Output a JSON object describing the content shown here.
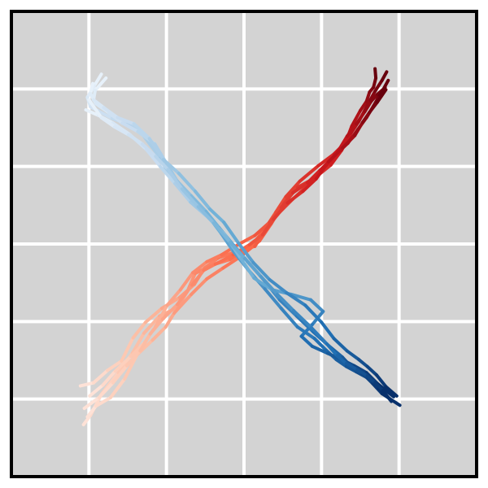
{
  "chart_data": {
    "type": "line",
    "title": "",
    "xlabel": "",
    "ylabel": "",
    "xlim": [
      0,
      6
    ],
    "ylim": [
      0,
      6
    ],
    "grid": true,
    "background_color": "#d3d3d3",
    "grid_color": "#ffffff",
    "frame_color": "#000000",
    "legend": "none",
    "colormaps": {
      "reds": [
        "#fff5f0",
        "#fcbba1",
        "#fb6a4a",
        "#cb181d",
        "#67000d"
      ],
      "blues": [
        "#f7fbff",
        "#c6dbef",
        "#6baed6",
        "#2171b5",
        "#08306b"
      ]
    },
    "series": [
      {
        "colormap": "reds",
        "x": [
          0.93,
          1.02,
          1.16,
          1.38,
          1.56,
          1.71,
          1.91,
          2.14,
          2.27,
          2.37,
          2.56,
          2.82,
          3.08,
          3.26,
          3.41,
          3.54,
          3.72,
          3.96,
          4.16,
          4.31,
          4.39,
          4.5,
          4.58,
          4.62,
          4.67,
          4.7,
          4.69
        ],
        "y": [
          0.67,
          0.79,
          1.06,
          1.34,
          1.59,
          1.85,
          2.07,
          2.18,
          2.39,
          2.62,
          2.72,
          2.8,
          2.96,
          3.18,
          3.41,
          3.61,
          3.81,
          4.01,
          4.16,
          4.31,
          4.52,
          4.72,
          4.84,
          4.96,
          5.02,
          5.14,
          5.26
        ]
      },
      {
        "colormap": "reds",
        "x": [
          0.98,
          1.09,
          1.28,
          1.46,
          1.62,
          1.82,
          1.99,
          2.1,
          2.32,
          2.52,
          2.73,
          2.96,
          3.2,
          3.35,
          3.51,
          3.69,
          3.91,
          4.12,
          4.26,
          4.38,
          4.48,
          4.56,
          4.63,
          4.69,
          4.78,
          4.84
        ],
        "y": [
          0.77,
          0.91,
          1.02,
          1.26,
          1.57,
          1.76,
          1.93,
          2.11,
          2.35,
          2.55,
          2.69,
          2.84,
          3.04,
          3.26,
          3.52,
          3.73,
          3.85,
          4.02,
          4.21,
          4.43,
          4.58,
          4.73,
          4.86,
          4.97,
          5.11,
          5.22
        ]
      },
      {
        "colormap": "reds",
        "x": [
          0.89,
          1.06,
          1.24,
          1.42,
          1.57,
          1.73,
          1.94,
          2.17,
          2.36,
          2.49,
          2.67,
          2.89,
          3.14,
          3.31,
          3.46,
          3.63,
          3.86,
          4.06,
          4.21,
          4.33,
          4.45,
          4.56,
          4.64,
          4.72,
          4.8,
          4.86
        ],
        "y": [
          1.17,
          1.21,
          1.37,
          1.49,
          1.79,
          1.99,
          2.17,
          2.31,
          2.48,
          2.69,
          2.82,
          2.9,
          2.97,
          3.23,
          3.41,
          3.58,
          3.79,
          4.01,
          4.19,
          4.39,
          4.55,
          4.71,
          4.84,
          4.93,
          5.0,
          5.11
        ]
      },
      {
        "colormap": "reds",
        "x": [
          1.01,
          1.18,
          1.34,
          1.54,
          1.72,
          1.86,
          2.01,
          2.18,
          2.34,
          2.52,
          2.71,
          2.92,
          3.14,
          3.33,
          3.48,
          3.63,
          3.82,
          3.98,
          4.17,
          4.34,
          4.47,
          4.58,
          4.67,
          4.75,
          4.82
        ],
        "y": [
          1.04,
          1.18,
          1.36,
          1.55,
          1.73,
          1.94,
          2.21,
          2.41,
          2.63,
          2.77,
          2.86,
          2.99,
          3.11,
          3.28,
          3.47,
          3.66,
          3.79,
          3.95,
          4.14,
          4.3,
          4.48,
          4.63,
          4.78,
          4.92,
          5.02
        ]
      },
      {
        "colormap": "reds",
        "x": [
          0.94,
          1.13,
          1.31,
          1.49,
          1.66,
          1.79,
          1.95,
          2.14,
          2.33,
          2.48,
          2.63,
          2.86,
          3.07,
          3.24,
          3.38,
          3.56,
          3.76,
          3.93,
          4.09,
          4.27,
          4.43,
          4.53,
          4.62,
          4.72,
          4.83
        ],
        "y": [
          0.88,
          1.02,
          1.21,
          1.43,
          1.62,
          1.84,
          2.03,
          2.22,
          2.47,
          2.66,
          2.74,
          2.86,
          2.99,
          3.12,
          3.32,
          3.53,
          3.68,
          3.84,
          4.06,
          4.24,
          4.4,
          4.57,
          4.7,
          4.83,
          4.99
        ]
      },
      {
        "colormap": "blues",
        "x": [
          1.16,
          1.07,
          0.98,
          1.02,
          1.13,
          1.3,
          1.5,
          1.67,
          1.92,
          2.06,
          2.18,
          2.34,
          2.53,
          2.71,
          2.86,
          3.06,
          3.27,
          3.48,
          3.69,
          3.91,
          4.06,
          4.19,
          4.32,
          4.45,
          4.58,
          4.66,
          4.78,
          5.01
        ],
        "y": [
          5.19,
          5.04,
          4.89,
          4.77,
          4.71,
          4.62,
          4.55,
          4.44,
          4.11,
          3.84,
          3.73,
          3.58,
          3.37,
          3.13,
          2.91,
          2.66,
          2.42,
          2.17,
          1.93,
          1.78,
          1.63,
          1.51,
          1.42,
          1.35,
          1.28,
          1.2,
          1.07,
          0.92
        ]
      },
      {
        "colormap": "blues",
        "x": [
          1.05,
          1.02,
          1.09,
          1.26,
          1.43,
          1.63,
          1.85,
          2.0,
          2.14,
          2.32,
          2.51,
          2.68,
          2.87,
          3.06,
          3.26,
          3.46,
          3.68,
          3.89,
          4.09,
          4.27,
          4.39,
          4.52,
          4.64,
          4.74,
          4.88
        ],
        "y": [
          5.07,
          4.94,
          4.81,
          4.69,
          4.56,
          4.45,
          4.29,
          4.04,
          3.81,
          3.62,
          3.42,
          3.21,
          2.98,
          2.76,
          2.53,
          2.28,
          2.07,
          1.87,
          1.69,
          1.54,
          1.41,
          1.33,
          1.26,
          1.14,
          1.0
        ]
      },
      {
        "colormap": "blues",
        "x": [
          0.96,
          1.12,
          1.31,
          1.53,
          1.74,
          1.92,
          2.11,
          2.31,
          2.54,
          2.76,
          2.96,
          3.13,
          3.36,
          3.61,
          3.86,
          4.02,
          3.88,
          3.74,
          3.88,
          4.08,
          4.26,
          4.42,
          4.58,
          4.72,
          4.93
        ],
        "y": [
          4.73,
          4.66,
          4.56,
          4.41,
          4.22,
          4.0,
          3.78,
          3.54,
          3.34,
          3.11,
          2.81,
          2.56,
          2.41,
          2.35,
          2.28,
          2.13,
          1.96,
          1.81,
          1.68,
          1.59,
          1.51,
          1.43,
          1.34,
          1.2,
          1.03
        ]
      },
      {
        "colormap": "blues",
        "x": [
          1.22,
          1.08,
          1.06,
          1.19,
          1.37,
          1.58,
          1.78,
          1.96,
          2.16,
          2.37,
          2.56,
          2.74,
          2.93,
          3.12,
          3.33,
          3.55,
          3.79,
          4.0,
          4.16,
          4.33,
          4.48,
          4.59,
          4.71,
          4.83,
          4.97
        ],
        "y": [
          5.14,
          4.98,
          4.86,
          4.76,
          4.63,
          4.55,
          4.36,
          4.09,
          3.91,
          3.68,
          3.45,
          3.28,
          3.01,
          2.76,
          2.54,
          2.37,
          2.21,
          1.99,
          1.78,
          1.62,
          1.51,
          1.42,
          1.31,
          1.16,
          1.04
        ]
      },
      {
        "colormap": "blues",
        "x": [
          1.0,
          1.16,
          1.33,
          1.51,
          1.69,
          1.86,
          2.02,
          2.2,
          2.41,
          2.61,
          2.82,
          3.01,
          3.22,
          3.43,
          3.64,
          3.87,
          4.07,
          4.2,
          4.32,
          4.46,
          4.59,
          4.69,
          4.79,
          4.9
        ],
        "y": [
          4.86,
          4.63,
          4.51,
          4.41,
          4.29,
          4.13,
          3.96,
          3.71,
          3.48,
          3.27,
          3.02,
          2.81,
          2.58,
          2.35,
          2.14,
          1.92,
          1.71,
          1.56,
          1.46,
          1.38,
          1.3,
          1.21,
          1.11,
          0.97
        ]
      }
    ]
  }
}
